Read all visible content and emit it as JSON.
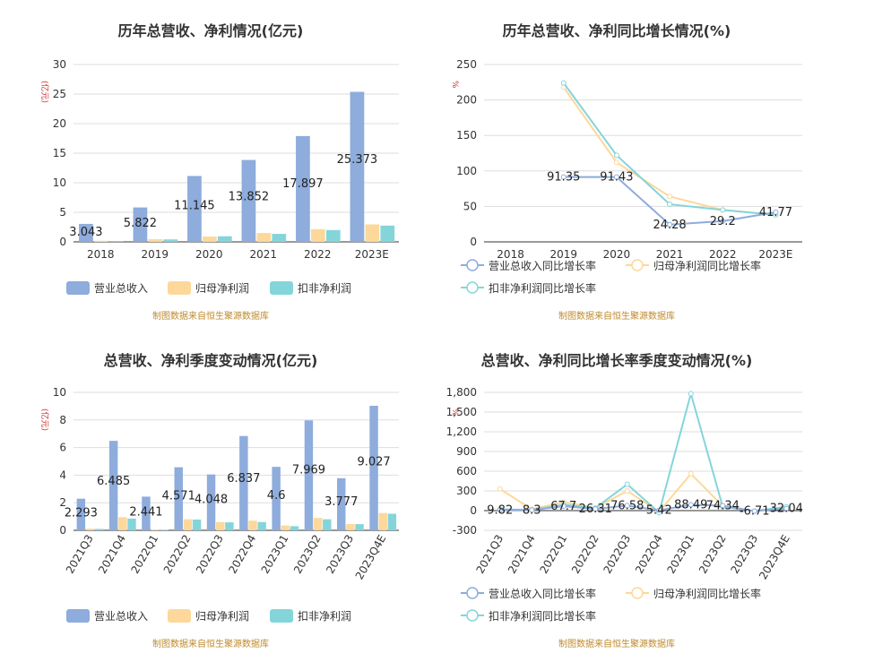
{
  "colors": {
    "revenue": "#8eacdc",
    "netprofit": "#fdd89a",
    "deducted": "#84d5da"
  },
  "legends": {
    "bar": [
      "营业总收入",
      "归母净利润",
      "扣非净利润"
    ],
    "line": [
      "营业总收入同比增长率",
      "归母净利润同比增长率",
      "扣非净利润同比增长率"
    ]
  },
  "source": "制图数据来自恒生聚源数据库",
  "chart_data": [
    {
      "type": "bar",
      "title": "历年总营收、净利情况(亿元)",
      "ylabel": "(亿元)",
      "categories": [
        "2018",
        "2019",
        "2020",
        "2021",
        "2022",
        "2023E"
      ],
      "ylim": [
        0,
        30
      ],
      "yticks": [
        "0",
        "5",
        "10",
        "15",
        "20",
        "25",
        "30"
      ],
      "series": [
        {
          "name": "营业总收入",
          "values": [
            3.043,
            5.822,
            11.145,
            13.852,
            17.897,
            25.373
          ]
        },
        {
          "name": "归母净利润",
          "values": [
            0.18,
            0.45,
            0.9,
            1.5,
            2.15,
            2.95
          ]
        },
        {
          "name": "扣非净利润",
          "values": [
            0.15,
            0.42,
            0.95,
            1.35,
            2.0,
            2.75
          ]
        }
      ],
      "labels": [
        "3.043",
        "5.822",
        "11.145",
        "13.852",
        "17.897",
        "25.373"
      ]
    },
    {
      "type": "line",
      "title": "历年总营收、净利同比增长情况(%)",
      "ylabel": "%",
      "categories": [
        "2018",
        "2019",
        "2020",
        "2021",
        "2022",
        "2023E"
      ],
      "ylim": [
        0,
        250
      ],
      "yticks": [
        "0",
        "50",
        "100",
        "150",
        "200",
        "250"
      ],
      "series": [
        {
          "name": "营业总收入同比增长率",
          "values": [
            null,
            91.35,
            91.43,
            24.28,
            29.2,
            41.77
          ]
        },
        {
          "name": "归母净利润同比增长率",
          "values": [
            null,
            218,
            112,
            64,
            45,
            38
          ]
        },
        {
          "name": "扣非净利润同比增长率",
          "values": [
            null,
            224,
            122,
            53,
            45,
            38
          ]
        }
      ],
      "labels": [
        "",
        "91.35",
        "91.43",
        "24.28",
        "29.2",
        "41.77"
      ]
    },
    {
      "type": "bar",
      "title": "总营收、净利季度变动情况(亿元)",
      "ylabel": "(亿元)",
      "categories": [
        "2021Q3",
        "2021Q4",
        "2022Q1",
        "2022Q2",
        "2022Q3",
        "2022Q4",
        "2023Q1",
        "2023Q2",
        "2023Q3",
        "2023Q4E"
      ],
      "ylim": [
        0,
        10
      ],
      "yticks": [
        "0",
        "2",
        "4",
        "6",
        "8",
        "10"
      ],
      "series": [
        {
          "name": "营业总收入",
          "values": [
            2.293,
            6.485,
            2.441,
            4.571,
            4.048,
            6.837,
            4.6,
            7.969,
            3.777,
            9.027
          ]
        },
        {
          "name": "归母净利润",
          "values": [
            0.12,
            0.95,
            0.05,
            0.8,
            0.6,
            0.7,
            0.35,
            0.9,
            0.45,
            1.25
          ]
        },
        {
          "name": "扣非净利润",
          "values": [
            0.1,
            0.85,
            0.04,
            0.78,
            0.58,
            0.6,
            0.3,
            0.8,
            0.45,
            1.2
          ]
        }
      ],
      "labels": [
        "2.293",
        "6.485",
        "2.441",
        "4.571",
        "4.048",
        "6.837",
        "4.6",
        "7.969",
        "3.777",
        "9.027"
      ]
    },
    {
      "type": "line",
      "title": "总营收、净利同比增长率季度变动情况(%)",
      "ylabel": "%",
      "categories": [
        "2021Q3",
        "2021Q4",
        "2022Q1",
        "2022Q2",
        "2022Q3",
        "2022Q4",
        "2023Q1",
        "2023Q2",
        "2023Q3",
        "2023Q4E"
      ],
      "ylim": [
        -300,
        1800
      ],
      "yticks": [
        "-300",
        "0",
        "300",
        "600",
        "900",
        "1,200",
        "1,500",
        "1,800"
      ],
      "series": [
        {
          "name": "营业总收入同比增长率",
          "values": [
            9.82,
            8.3,
            67.7,
            26.31,
            76.58,
            5.42,
            88.49,
            74.34,
            -6.71,
            32.04
          ]
        },
        {
          "name": "归母净利润同比增长率",
          "values": [
            330,
            20,
            130,
            40,
            300,
            -20,
            560,
            70,
            -10,
            50
          ]
        },
        {
          "name": "扣非净利润同比增长率",
          "values": [
            20,
            10,
            90,
            40,
            400,
            -30,
            1780,
            60,
            -5,
            60
          ]
        }
      ],
      "labels": [
        "9.82",
        "8.3",
        "67.7",
        "26.31",
        "76.58",
        "5.42",
        "88.49",
        "74.34",
        "-6.71",
        "32.04"
      ]
    }
  ]
}
